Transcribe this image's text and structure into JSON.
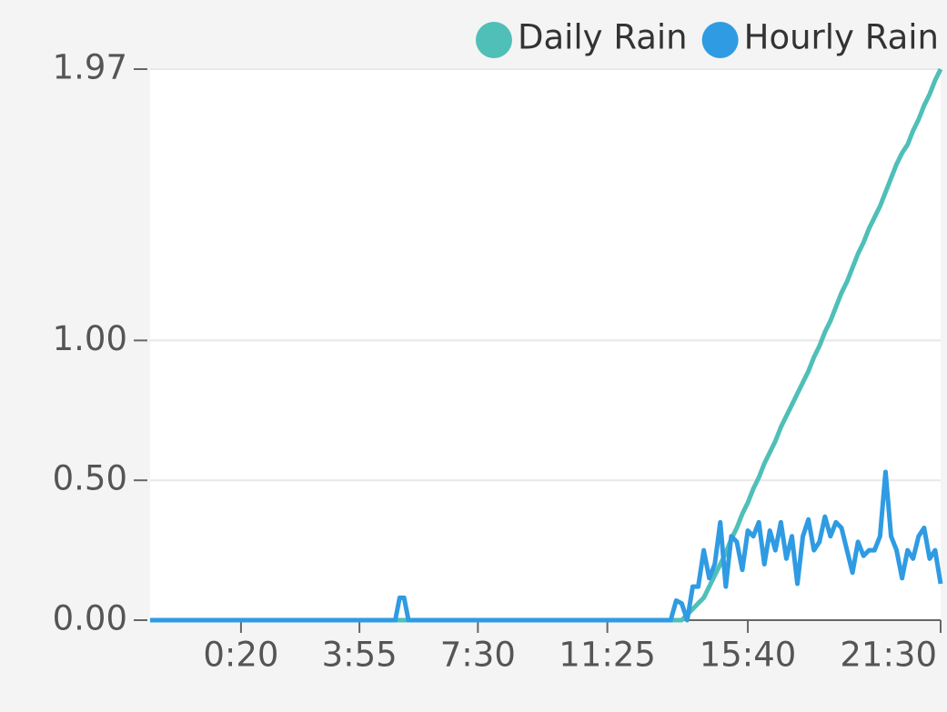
{
  "chart_data": {
    "type": "line",
    "x": [
      -145,
      300,
      308,
      316,
      324,
      332,
      790,
      800,
      810,
      820,
      830,
      840,
      850,
      860,
      870,
      880,
      890,
      900,
      910,
      920,
      930,
      940,
      950,
      960,
      970,
      980,
      990,
      1000,
      1010,
      1020,
      1030,
      1040,
      1050,
      1060,
      1070,
      1080,
      1090,
      1100,
      1110,
      1120,
      1130,
      1140,
      1150,
      1160,
      1170,
      1180,
      1190,
      1200,
      1210,
      1220,
      1230,
      1240,
      1250,
      1260,
      1270,
      1280,
      1290
    ],
    "series": [
      {
        "name": "Daily Rain",
        "color": "#4fbfb8",
        "values": [
          0,
          0,
          0,
          0,
          0,
          0,
          0,
          0,
          0,
          0,
          0.02,
          0.04,
          0.06,
          0.08,
          0.12,
          0.16,
          0.2,
          0.24,
          0.29,
          0.33,
          0.38,
          0.42,
          0.47,
          0.51,
          0.56,
          0.6,
          0.64,
          0.69,
          0.73,
          0.77,
          0.81,
          0.85,
          0.89,
          0.94,
          0.98,
          1.03,
          1.07,
          1.12,
          1.17,
          1.21,
          1.26,
          1.31,
          1.35,
          1.4,
          1.44,
          1.48,
          1.53,
          1.58,
          1.63,
          1.67,
          1.7,
          1.75,
          1.79,
          1.84,
          1.88,
          1.93,
          1.97
        ]
      },
      {
        "name": "Hourly Rain",
        "color": "#2f9be3",
        "values": [
          0,
          0,
          0.08,
          0.08,
          0,
          0,
          0,
          0,
          0.07,
          0.06,
          0,
          0.12,
          0.12,
          0.25,
          0.15,
          0.2,
          0.35,
          0.12,
          0.3,
          0.28,
          0.18,
          0.32,
          0.3,
          0.35,
          0.2,
          0.32,
          0.25,
          0.35,
          0.22,
          0.3,
          0.13,
          0.3,
          0.36,
          0.25,
          0.28,
          0.37,
          0.3,
          0.35,
          0.33,
          0.25,
          0.17,
          0.28,
          0.23,
          0.25,
          0.25,
          0.3,
          0.53,
          0.3,
          0.25,
          0.15,
          0.25,
          0.22,
          0.3,
          0.33,
          0.22,
          0.25,
          0.13
        ]
      }
    ],
    "xlim": [
      -145,
      1290
    ],
    "xticks": [
      {
        "value": 20,
        "label": "0:20"
      },
      {
        "value": 235,
        "label": "3:55"
      },
      {
        "value": 450,
        "label": "7:30"
      },
      {
        "value": 685,
        "label": "11:25"
      },
      {
        "value": 940,
        "label": "15:40"
      },
      {
        "value": 1290,
        "label": "21:30"
      }
    ],
    "ylim": [
      0,
      1.97
    ],
    "yticks": [
      {
        "value": 0,
        "label": "0.00"
      },
      {
        "value": 0.5,
        "label": "0.50"
      },
      {
        "value": 1,
        "label": "1.00"
      },
      1.97
    ],
    "grid": true,
    "legend": "top-right"
  }
}
